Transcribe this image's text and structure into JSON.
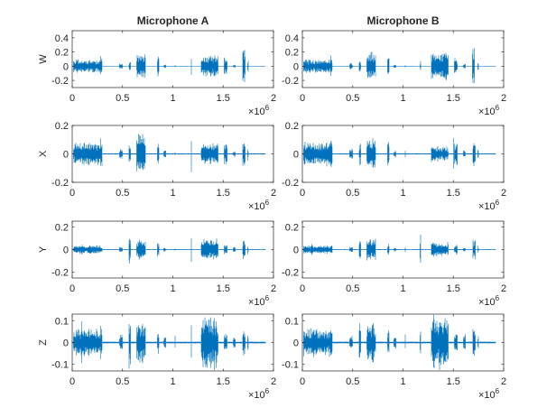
{
  "chart_data": [
    {
      "type": "line",
      "title": "Microphone A",
      "ylabel": "W",
      "xlim": [
        0,
        2
      ],
      "ylim": [
        -0.3,
        0.5
      ],
      "xticks": [
        "0",
        "0.5",
        "1",
        "1.5",
        "2"
      ],
      "xtick_values": [
        0,
        0.5,
        1,
        1.5,
        2
      ],
      "yticks": [
        "-0.2",
        "0",
        "0.2",
        "0.4"
      ],
      "ytick_values": [
        -0.2,
        0,
        0.2,
        0.4
      ],
      "x_exponent": "×10",
      "x_exponent_power": "6",
      "color": "#0072BD",
      "signal_end": 1.92,
      "bursts": [
        [
          0.01,
          0.3,
          0.1
        ],
        [
          0.28,
          0.295,
          0.2
        ],
        [
          0.47,
          0.5,
          0.05
        ],
        [
          0.565,
          0.58,
          0.07
        ],
        [
          0.64,
          0.73,
          0.2
        ],
        [
          0.845,
          0.865,
          0.15
        ],
        [
          0.91,
          0.93,
          0.03
        ],
        [
          1.02,
          1.025,
          0.04
        ],
        [
          1.18,
          1.185,
          0.15
        ],
        [
          1.28,
          1.45,
          0.17
        ],
        [
          1.51,
          1.54,
          0.15
        ],
        [
          1.6,
          1.62,
          0.03
        ],
        [
          1.695,
          1.72,
          0.33
        ],
        [
          1.74,
          1.75,
          0.1
        ]
      ]
    },
    {
      "type": "line",
      "title": "Microphone B",
      "ylabel": "",
      "xlim": [
        0,
        2
      ],
      "ylim": [
        -0.3,
        0.5
      ],
      "xticks": [
        "0",
        "0.5",
        "1",
        "1.5",
        "2"
      ],
      "xtick_values": [
        0,
        0.5,
        1,
        1.5,
        2
      ],
      "yticks": [
        "-0.2",
        "0",
        "0.2",
        "0.4"
      ],
      "ytick_values": [
        -0.2,
        0,
        0.2,
        0.4
      ],
      "x_exponent": "×10",
      "x_exponent_power": "6",
      "color": "#0072BD",
      "signal_end": 1.92,
      "bursts": [
        [
          0.01,
          0.3,
          0.1
        ],
        [
          0.28,
          0.295,
          0.18
        ],
        [
          0.47,
          0.5,
          0.05
        ],
        [
          0.565,
          0.58,
          0.12
        ],
        [
          0.64,
          0.73,
          0.22
        ],
        [
          0.845,
          0.865,
          0.15
        ],
        [
          0.91,
          0.93,
          0.03
        ],
        [
          1.02,
          1.025,
          0.04
        ],
        [
          1.17,
          1.175,
          0.12
        ],
        [
          1.28,
          1.45,
          0.22
        ],
        [
          1.51,
          1.54,
          0.15
        ],
        [
          1.6,
          1.62,
          0.04
        ],
        [
          1.69,
          1.71,
          0.3
        ],
        [
          1.74,
          1.75,
          0.1
        ]
      ]
    },
    {
      "type": "line",
      "title": "",
      "ylabel": "X",
      "xlim": [
        0,
        2
      ],
      "ylim": [
        -0.2,
        0.2
      ],
      "xticks": [
        "0",
        "0.5",
        "1",
        "1.5",
        "2"
      ],
      "xtick_values": [
        0,
        0.5,
        1,
        1.5,
        2
      ],
      "yticks": [
        "-0.2",
        "0",
        "0.2"
      ],
      "ytick_values": [
        -0.2,
        0,
        0.2
      ],
      "x_exponent": "×10",
      "x_exponent_power": "6",
      "color": "#0072BD",
      "signal_end": 1.92,
      "bursts": [
        [
          0.01,
          0.3,
          0.09
        ],
        [
          0.28,
          0.295,
          0.12
        ],
        [
          0.47,
          0.5,
          0.04
        ],
        [
          0.565,
          0.58,
          0.1
        ],
        [
          0.64,
          0.73,
          0.16
        ],
        [
          0.845,
          0.865,
          0.1
        ],
        [
          0.91,
          0.93,
          0.03
        ],
        [
          1.02,
          1.025,
          0.03
        ],
        [
          1.18,
          1.185,
          0.2
        ],
        [
          1.28,
          1.45,
          0.08
        ],
        [
          1.51,
          1.54,
          0.1
        ],
        [
          1.6,
          1.62,
          0.03
        ],
        [
          1.695,
          1.72,
          0.1
        ],
        [
          1.74,
          1.75,
          0.06
        ]
      ]
    },
    {
      "type": "line",
      "title": "",
      "ylabel": "",
      "xlim": [
        0,
        2
      ],
      "ylim": [
        -0.2,
        0.2
      ],
      "xticks": [
        "0",
        "0.5",
        "1",
        "1.5",
        "2"
      ],
      "xtick_values": [
        0,
        0.5,
        1,
        1.5,
        2
      ],
      "yticks": [
        "-0.2",
        "0",
        "0.2"
      ],
      "ytick_values": [
        -0.2,
        0,
        0.2
      ],
      "x_exponent": "×10",
      "x_exponent_power": "6",
      "color": "#0072BD",
      "signal_end": 1.92,
      "bursts": [
        [
          0.01,
          0.3,
          0.09
        ],
        [
          0.28,
          0.295,
          0.12
        ],
        [
          0.47,
          0.5,
          0.04
        ],
        [
          0.565,
          0.58,
          0.1
        ],
        [
          0.64,
          0.73,
          0.12
        ],
        [
          0.845,
          0.865,
          0.1
        ],
        [
          0.91,
          0.93,
          0.03
        ],
        [
          1.02,
          1.025,
          0.03
        ],
        [
          1.28,
          1.45,
          0.06
        ],
        [
          1.5,
          1.505,
          0.2
        ],
        [
          1.51,
          1.54,
          0.1
        ],
        [
          1.6,
          1.62,
          0.03
        ],
        [
          1.695,
          1.72,
          0.1
        ],
        [
          1.74,
          1.75,
          0.06
        ]
      ]
    },
    {
      "type": "line",
      "title": "",
      "ylabel": "Y",
      "xlim": [
        0,
        2
      ],
      "ylim": [
        -0.25,
        0.25
      ],
      "xticks": [
        "0",
        "0.5",
        "1",
        "1.5",
        "2"
      ],
      "xtick_values": [
        0,
        0.5,
        1,
        1.5,
        2
      ],
      "yticks": [
        "-0.2",
        "0",
        "0.2"
      ],
      "ytick_values": [
        -0.2,
        0,
        0.2
      ],
      "x_exponent": "×10",
      "x_exponent_power": "6",
      "color": "#0072BD",
      "signal_end": 1.92,
      "bursts": [
        [
          0.01,
          0.3,
          0.04
        ],
        [
          0.09,
          0.1,
          0.08
        ],
        [
          0.47,
          0.5,
          0.03
        ],
        [
          0.565,
          0.58,
          0.13
        ],
        [
          0.64,
          0.73,
          0.11
        ],
        [
          0.845,
          0.865,
          0.07
        ],
        [
          0.91,
          0.93,
          0.02
        ],
        [
          1.02,
          1.025,
          0.03
        ],
        [
          1.18,
          1.185,
          0.25
        ],
        [
          1.28,
          1.45,
          0.1
        ],
        [
          1.51,
          1.54,
          0.05
        ],
        [
          1.6,
          1.62,
          0.03
        ],
        [
          1.695,
          1.72,
          0.1
        ],
        [
          1.74,
          1.75,
          0.05
        ]
      ]
    },
    {
      "type": "line",
      "title": "",
      "ylabel": "",
      "xlim": [
        0,
        2
      ],
      "ylim": [
        -0.25,
        0.25
      ],
      "xticks": [
        "0",
        "0.5",
        "1",
        "1.5",
        "2"
      ],
      "xtick_values": [
        0,
        0.5,
        1,
        1.5,
        2
      ],
      "yticks": [
        "-0.2",
        "0",
        "0.2"
      ],
      "ytick_values": [
        -0.2,
        0,
        0.2
      ],
      "x_exponent": "×10",
      "x_exponent_power": "6",
      "color": "#0072BD",
      "signal_end": 1.92,
      "bursts": [
        [
          0.01,
          0.3,
          0.04
        ],
        [
          0.09,
          0.1,
          0.07
        ],
        [
          0.47,
          0.5,
          0.03
        ],
        [
          0.565,
          0.58,
          0.1
        ],
        [
          0.64,
          0.73,
          0.11
        ],
        [
          0.845,
          0.865,
          0.07
        ],
        [
          0.91,
          0.93,
          0.02
        ],
        [
          1.02,
          1.025,
          0.03
        ],
        [
          1.17,
          1.175,
          0.22
        ],
        [
          1.28,
          1.45,
          0.07
        ],
        [
          1.51,
          1.54,
          0.05
        ],
        [
          1.6,
          1.62,
          0.03
        ],
        [
          1.695,
          1.72,
          0.1
        ],
        [
          1.74,
          1.75,
          0.05
        ]
      ]
    },
    {
      "type": "line",
      "title": "",
      "ylabel": "Z",
      "xlim": [
        0,
        2
      ],
      "ylim": [
        -0.13,
        0.13
      ],
      "xticks": [
        "0",
        "0.5",
        "1",
        "1.5",
        "2"
      ],
      "xtick_values": [
        0,
        0.5,
        1,
        1.5,
        2
      ],
      "yticks": [
        "-0.1",
        "0",
        "0.1"
      ],
      "ytick_values": [
        -0.1,
        0,
        0.1
      ],
      "x_exponent": "×10",
      "x_exponent_power": "6",
      "color": "#0072BD",
      "signal_end": 1.92,
      "bursts": [
        [
          0.01,
          0.3,
          0.07
        ],
        [
          0.09,
          0.1,
          0.12
        ],
        [
          0.28,
          0.295,
          0.1
        ],
        [
          0.47,
          0.5,
          0.04
        ],
        [
          0.565,
          0.58,
          0.13
        ],
        [
          0.64,
          0.73,
          0.1
        ],
        [
          0.845,
          0.865,
          0.06
        ],
        [
          0.91,
          0.93,
          0.03
        ],
        [
          1.02,
          1.025,
          0.05
        ],
        [
          1.18,
          1.185,
          0.12
        ],
        [
          1.28,
          1.45,
          0.13
        ],
        [
          1.51,
          1.54,
          0.05
        ],
        [
          1.6,
          1.62,
          0.04
        ],
        [
          1.695,
          1.72,
          0.08
        ],
        [
          1.74,
          1.75,
          0.05
        ]
      ]
    },
    {
      "type": "line",
      "title": "",
      "ylabel": "",
      "xlim": [
        0,
        2
      ],
      "ylim": [
        -0.13,
        0.13
      ],
      "xticks": [
        "0",
        "0.5",
        "1",
        "1.5",
        "2"
      ],
      "xtick_values": [
        0,
        0.5,
        1,
        1.5,
        2
      ],
      "yticks": [
        "-0.1",
        "0",
        "0.1"
      ],
      "ytick_values": [
        -0.1,
        0,
        0.1
      ],
      "x_exponent": "×10",
      "x_exponent_power": "6",
      "color": "#0072BD",
      "signal_end": 1.92,
      "bursts": [
        [
          0.01,
          0.3,
          0.07
        ],
        [
          0.09,
          0.1,
          0.12
        ],
        [
          0.28,
          0.295,
          0.1
        ],
        [
          0.47,
          0.5,
          0.04
        ],
        [
          0.565,
          0.58,
          0.12
        ],
        [
          0.64,
          0.73,
          0.1
        ],
        [
          0.845,
          0.865,
          0.06
        ],
        [
          0.91,
          0.93,
          0.03
        ],
        [
          1.02,
          1.025,
          0.05
        ],
        [
          1.17,
          1.175,
          0.1
        ],
        [
          1.28,
          1.45,
          0.13
        ],
        [
          1.51,
          1.54,
          0.05
        ],
        [
          1.6,
          1.62,
          0.04
        ],
        [
          1.695,
          1.72,
          0.08
        ],
        [
          1.74,
          1.75,
          0.05
        ]
      ]
    }
  ]
}
